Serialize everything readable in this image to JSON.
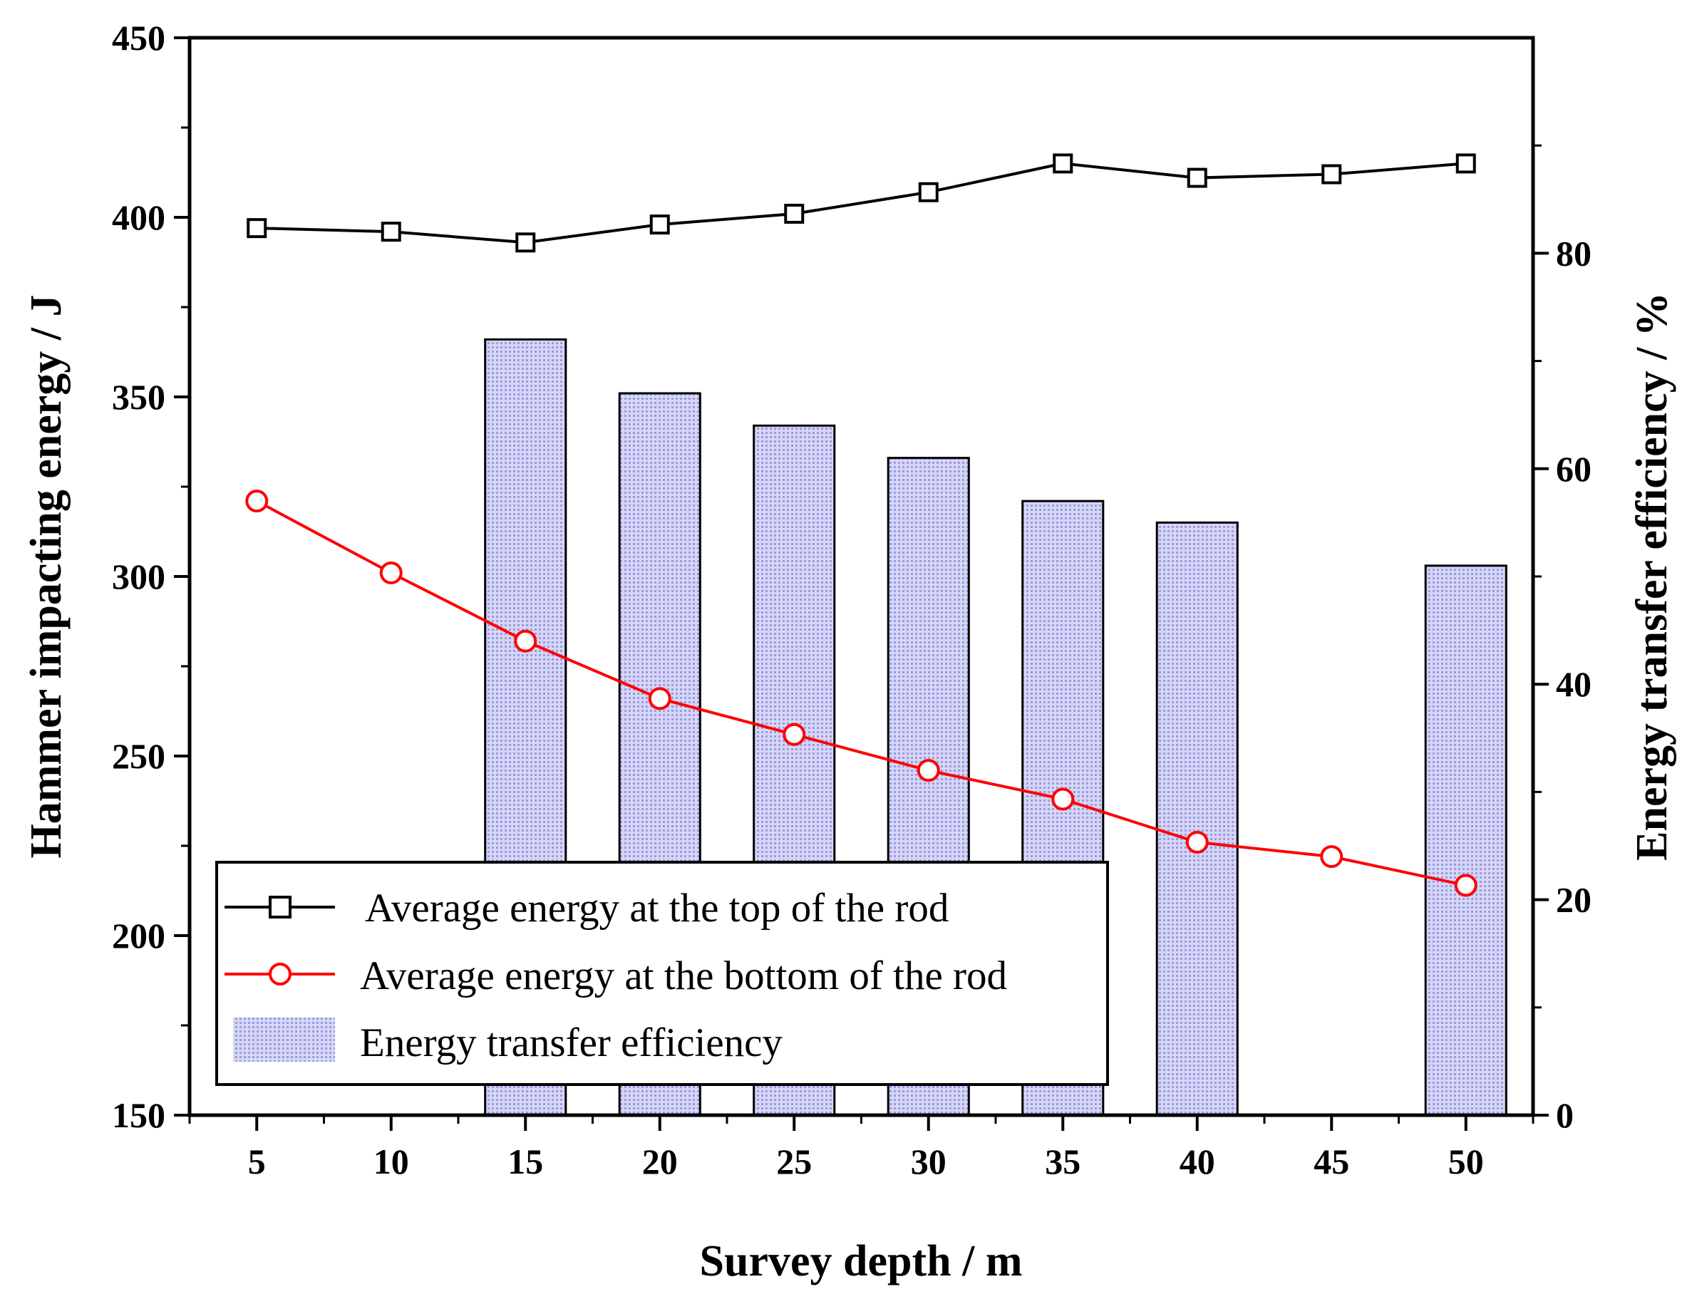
{
  "chart_data": {
    "type": "line+bar",
    "title": "",
    "xlabel": "Survey depth / m",
    "ylabel_left": "Hammer impacting energy / J",
    "ylabel_right": "Energy transfer efficiency / %",
    "x": [
      5,
      10,
      15,
      20,
      25,
      30,
      35,
      40,
      45,
      50
    ],
    "xlim": [
      2.5,
      52.5
    ],
    "ylim_left": [
      150,
      450
    ],
    "ylim_right": [
      0,
      100
    ],
    "x_ticks": [
      5,
      10,
      15,
      20,
      25,
      30,
      35,
      40,
      45,
      50
    ],
    "y_left_ticks": [
      150,
      200,
      250,
      300,
      350,
      400,
      450
    ],
    "y_right_ticks": [
      0,
      20,
      40,
      60,
      80
    ],
    "series": [
      {
        "name": "Average energy at the top of the rod",
        "axis": "left",
        "style": "line-square",
        "color": "#000000",
        "values": [
          397,
          396,
          393,
          398,
          401,
          407,
          415,
          411,
          412,
          415
        ]
      },
      {
        "name": "Average energy at the bottom of the rod",
        "axis": "left",
        "style": "line-circle",
        "color": "#ff0000",
        "values": [
          321,
          301,
          282,
          266,
          256,
          246,
          238,
          226,
          222,
          214
        ]
      },
      {
        "name": "Energy transfer efficiency",
        "axis": "right",
        "style": "bar",
        "color": "#c0c0f0",
        "values": [
          null,
          null,
          72,
          67,
          64,
          61,
          57,
          55,
          null,
          51
        ]
      }
    ],
    "legend": {
      "position": "bottom-left",
      "entries": [
        "Average energy at the top of the rod",
        "Average energy at the bottom of the rod",
        "Energy transfer efficiency"
      ]
    }
  }
}
